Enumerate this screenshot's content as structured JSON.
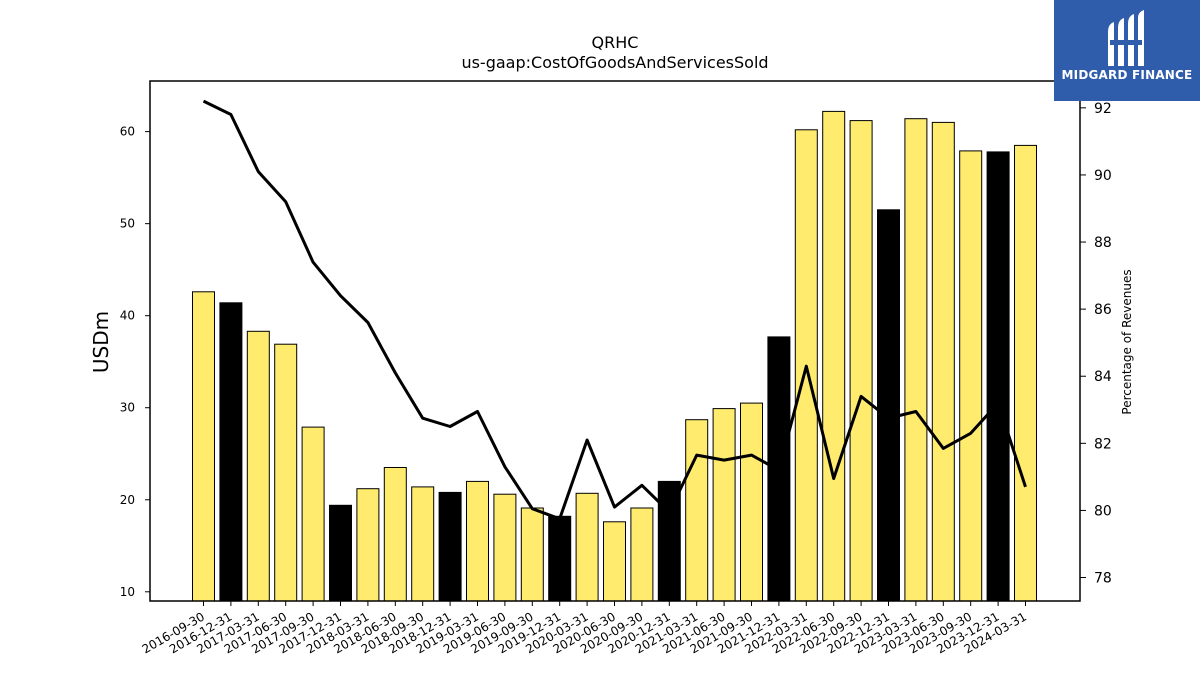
{
  "brand": {
    "name": "MIDGARD FINANCE",
    "bg_color": "#2f5dab"
  },
  "chart_data": {
    "type": "bar",
    "title": "QRHC",
    "subtitle": "us-gaap:CostOfGoodsAndServicesSold",
    "ylabel": "USDm",
    "ylabel_right": "Percentage of Revenues",
    "ylim": [
      9,
      65.5
    ],
    "ylim_right": [
      77.3,
      92.8
    ],
    "yticks": [
      10,
      20,
      30,
      40,
      50,
      60
    ],
    "yticks_right": [
      78,
      80,
      82,
      84,
      86,
      88,
      90,
      92
    ],
    "categories": [
      "2016-09-30",
      "2016-12-31",
      "2017-03-31",
      "2017-06-30",
      "2017-09-30",
      "2017-12-31",
      "2018-03-31",
      "2018-06-30",
      "2018-09-30",
      "2018-12-31",
      "2019-03-31",
      "2019-06-30",
      "2019-09-30",
      "2019-12-31",
      "2020-03-31",
      "2020-06-30",
      "2020-09-30",
      "2020-12-31",
      "2021-03-31",
      "2021-06-30",
      "2021-09-30",
      "2021-12-31",
      "2022-03-31",
      "2022-06-30",
      "2022-09-30",
      "2022-12-31",
      "2023-03-31",
      "2023-06-30",
      "2023-09-30",
      "2023-12-31",
      "2024-03-31"
    ],
    "series": [
      {
        "type": "bar",
        "values": [
          42.6,
          41.4,
          38.3,
          36.9,
          27.9,
          19.4,
          21.2,
          23.5,
          21.4,
          20.8,
          22.0,
          20.6,
          19.1,
          18.2,
          20.7,
          17.6,
          19.1,
          22.0,
          28.7,
          29.9,
          30.5,
          37.7,
          60.2,
          62.2,
          61.2,
          51.5,
          61.4,
          61.0,
          57.9,
          57.8,
          58.5
        ],
        "highlight": [
          false,
          true,
          false,
          false,
          false,
          true,
          false,
          false,
          false,
          true,
          false,
          false,
          false,
          true,
          false,
          false,
          false,
          true,
          false,
          false,
          false,
          true,
          false,
          false,
          false,
          true,
          false,
          false,
          false,
          true,
          false
        ]
      },
      {
        "type": "line",
        "axis": "right",
        "values": [
          92.2,
          91.8,
          90.1,
          89.2,
          87.4,
          86.4,
          85.6,
          84.1,
          82.75,
          82.5,
          82.95,
          81.3,
          80.05,
          79.75,
          82.1,
          80.1,
          80.75,
          79.95,
          81.65,
          81.5,
          81.65,
          81.2,
          84.3,
          80.95,
          83.4,
          82.75,
          82.95,
          81.85,
          82.3,
          83.2,
          80.7
        ]
      }
    ],
    "colors": {
      "bar": "#ffec6e",
      "bar_highlight": "#000000",
      "line": "#000000"
    },
    "grid": false,
    "legend": "none"
  }
}
